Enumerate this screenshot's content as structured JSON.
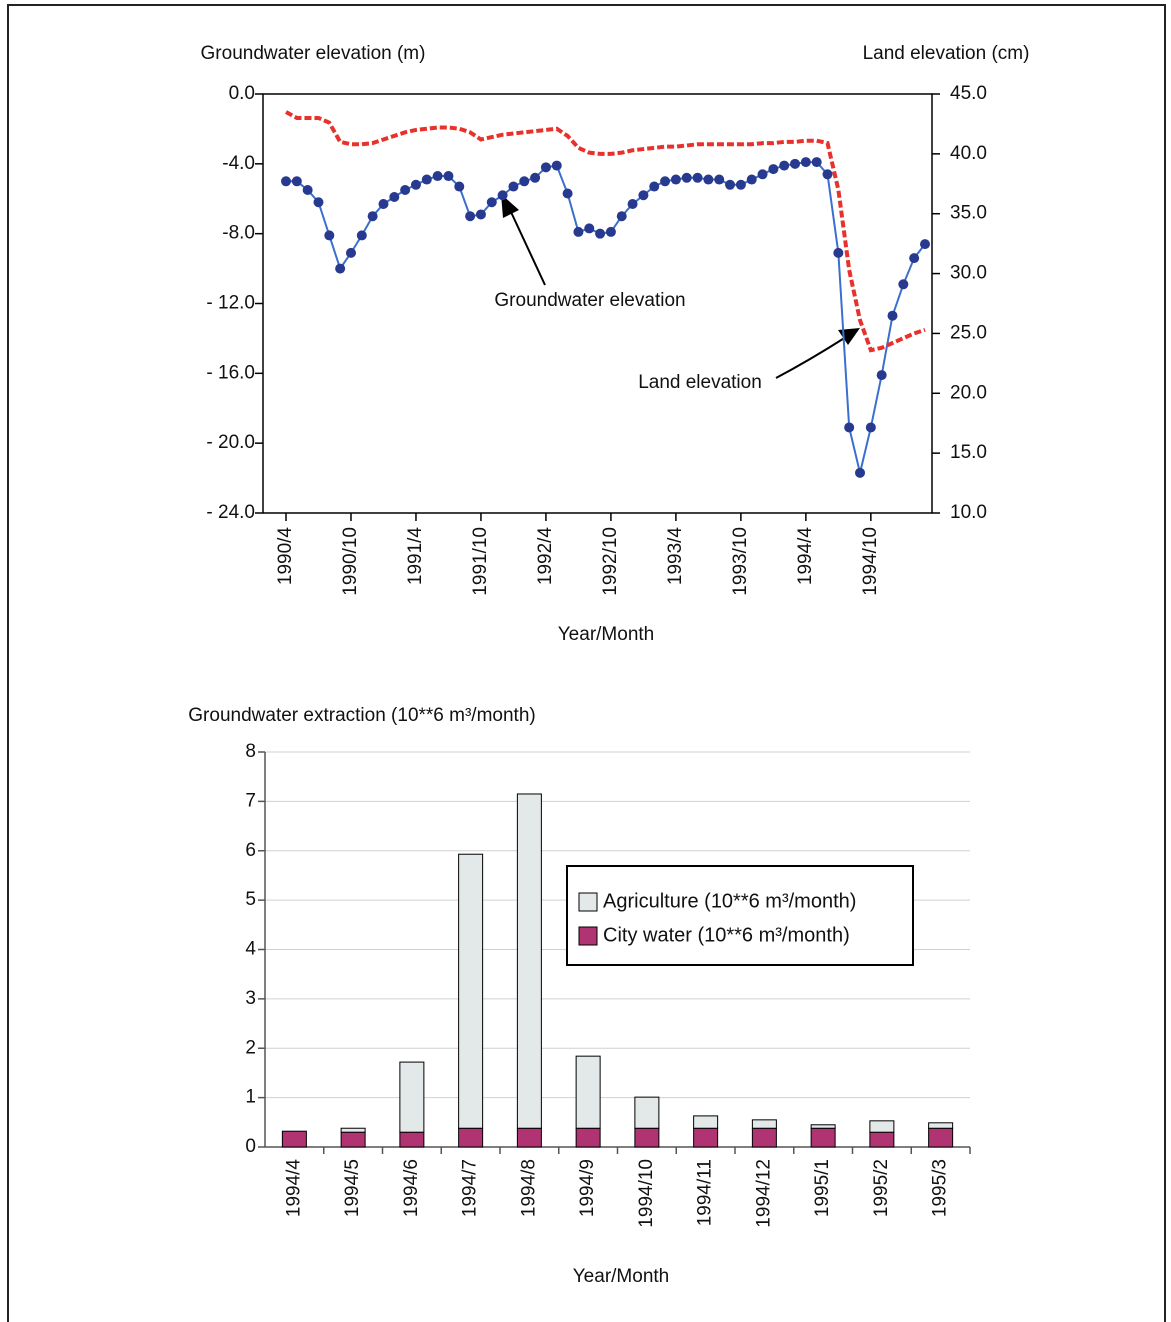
{
  "chart_data": [
    {
      "type": "line",
      "y_label": "Groundwater elevation (m)",
      "y2_label": "Land elevation (cm)",
      "x_label": "Year/Month",
      "categories": [
        "1990/4",
        null,
        null,
        null,
        null,
        null,
        "1990/10",
        null,
        null,
        null,
        null,
        null,
        "1991/4",
        null,
        null,
        null,
        null,
        null,
        "1991/10",
        null,
        null,
        null,
        null,
        null,
        "1992/4",
        null,
        null,
        null,
        null,
        null,
        "1992/10",
        null,
        null,
        null,
        null,
        null,
        "1993/4",
        null,
        null,
        null,
        null,
        null,
        "1993/10",
        null,
        null,
        null,
        null,
        null,
        "1994/4",
        null,
        null,
        null,
        null,
        null,
        "1994/10",
        null,
        null,
        null,
        null,
        null
      ],
      "series": [
        {
          "name": "Groundwater elevation",
          "color": "#3a6fcf",
          "marker_color": "#283a8f",
          "values": [
            -5.0,
            -5.0,
            -5.5,
            -6.2,
            -8.1,
            -10.0,
            -9.1,
            -8.1,
            -7.0,
            -6.3,
            -5.9,
            -5.5,
            -5.2,
            -4.9,
            -4.7,
            -4.7,
            -5.3,
            -7.0,
            -6.9,
            -6.2,
            -5.8,
            -5.3,
            -5.0,
            -4.8,
            -4.2,
            -4.1,
            -5.7,
            -7.9,
            -7.7,
            -8.0,
            -7.9,
            -7.0,
            -6.3,
            -5.8,
            -5.3,
            -5.0,
            -4.9,
            -4.8,
            -4.8,
            -4.9,
            -4.9,
            -5.2,
            -5.2,
            -4.9,
            -4.6,
            -4.3,
            -4.1,
            -4.0,
            -3.9,
            -3.9,
            -4.6,
            -9.1,
            -19.1,
            -21.7,
            -19.1,
            -16.1,
            -12.7,
            -10.9,
            -9.4,
            -8.6
          ]
        },
        {
          "name": "Land elevation",
          "color": "#e8312a",
          "axis": "y2",
          "dashed": true,
          "values": [
            43.5,
            43.0,
            43.0,
            43.0,
            42.6,
            41.0,
            40.8,
            40.8,
            40.9,
            41.2,
            41.5,
            41.8,
            42.0,
            42.1,
            42.2,
            42.2,
            42.1,
            41.8,
            41.2,
            41.4,
            41.6,
            41.7,
            41.8,
            41.9,
            42.0,
            42.1,
            41.5,
            40.5,
            40.1,
            40.0,
            40.0,
            40.1,
            40.3,
            40.4,
            40.5,
            40.6,
            40.6,
            40.7,
            40.8,
            40.8,
            40.8,
            40.8,
            40.8,
            40.8,
            40.9,
            40.9,
            41.0,
            41.0,
            41.1,
            41.1,
            40.9,
            37.0,
            30.3,
            26.1,
            23.6,
            23.8,
            24.2,
            24.6,
            25.0,
            25.3
          ]
        }
      ],
      "annotations": [
        {
          "text": "Groundwater elevation"
        },
        {
          "text": "Land elevation"
        }
      ],
      "ylim": [
        -24,
        0
      ],
      "yticks": [
        {
          "value": 0,
          "label": "0.0"
        },
        {
          "value": -4,
          "label": "-4.0"
        },
        {
          "value": -8,
          "label": "-8.0"
        },
        {
          "value": -12,
          "label": "- 12.0"
        },
        {
          "value": -16,
          "label": "- 16.0"
        },
        {
          "value": -20,
          "label": "- 20.0"
        },
        {
          "value": -24,
          "label": "- 24.0"
        }
      ],
      "y2lim": [
        10,
        45
      ],
      "y2ticks": [
        {
          "value": 45,
          "label": "45.0"
        },
        {
          "value": 40,
          "label": "40.0"
        },
        {
          "value": 35,
          "label": "35.0"
        },
        {
          "value": 30,
          "label": "30.0"
        },
        {
          "value": 25,
          "label": "25.0"
        },
        {
          "value": 20,
          "label": "20.0"
        },
        {
          "value": 15,
          "label": "15.0"
        },
        {
          "value": 10,
          "label": "10.0"
        }
      ],
      "grid": false
    },
    {
      "type": "bar",
      "stacked": true,
      "title": "Groundwater extraction (10**6 m³/month)",
      "x_label": "Year/Month",
      "categories": [
        "1994/4",
        "1994/5",
        "1994/6",
        "1994/7",
        "1994/8",
        "1994/9",
        "1994/10",
        "1994/11",
        "1994/12",
        "1995/1",
        "1995/2",
        "1995/3"
      ],
      "series": [
        {
          "name": "Agriculture (10**6 m³/month)",
          "color": "#e3e8e8",
          "values": [
            0,
            0.08,
            1.42,
            5.55,
            6.77,
            1.46,
            0.63,
            0.25,
            0.17,
            0.07,
            0.23,
            0.11
          ]
        },
        {
          "name": "City water (10**6 m³/month)",
          "color": "#b03472",
          "values": [
            0.32,
            0.3,
            0.3,
            0.38,
            0.38,
            0.38,
            0.38,
            0.38,
            0.38,
            0.38,
            0.3,
            0.38
          ]
        }
      ],
      "ylim": [
        0,
        8
      ],
      "yticks": [
        0,
        1,
        2,
        3,
        4,
        5,
        6,
        7,
        8
      ],
      "grid": true,
      "legend": "right"
    }
  ]
}
